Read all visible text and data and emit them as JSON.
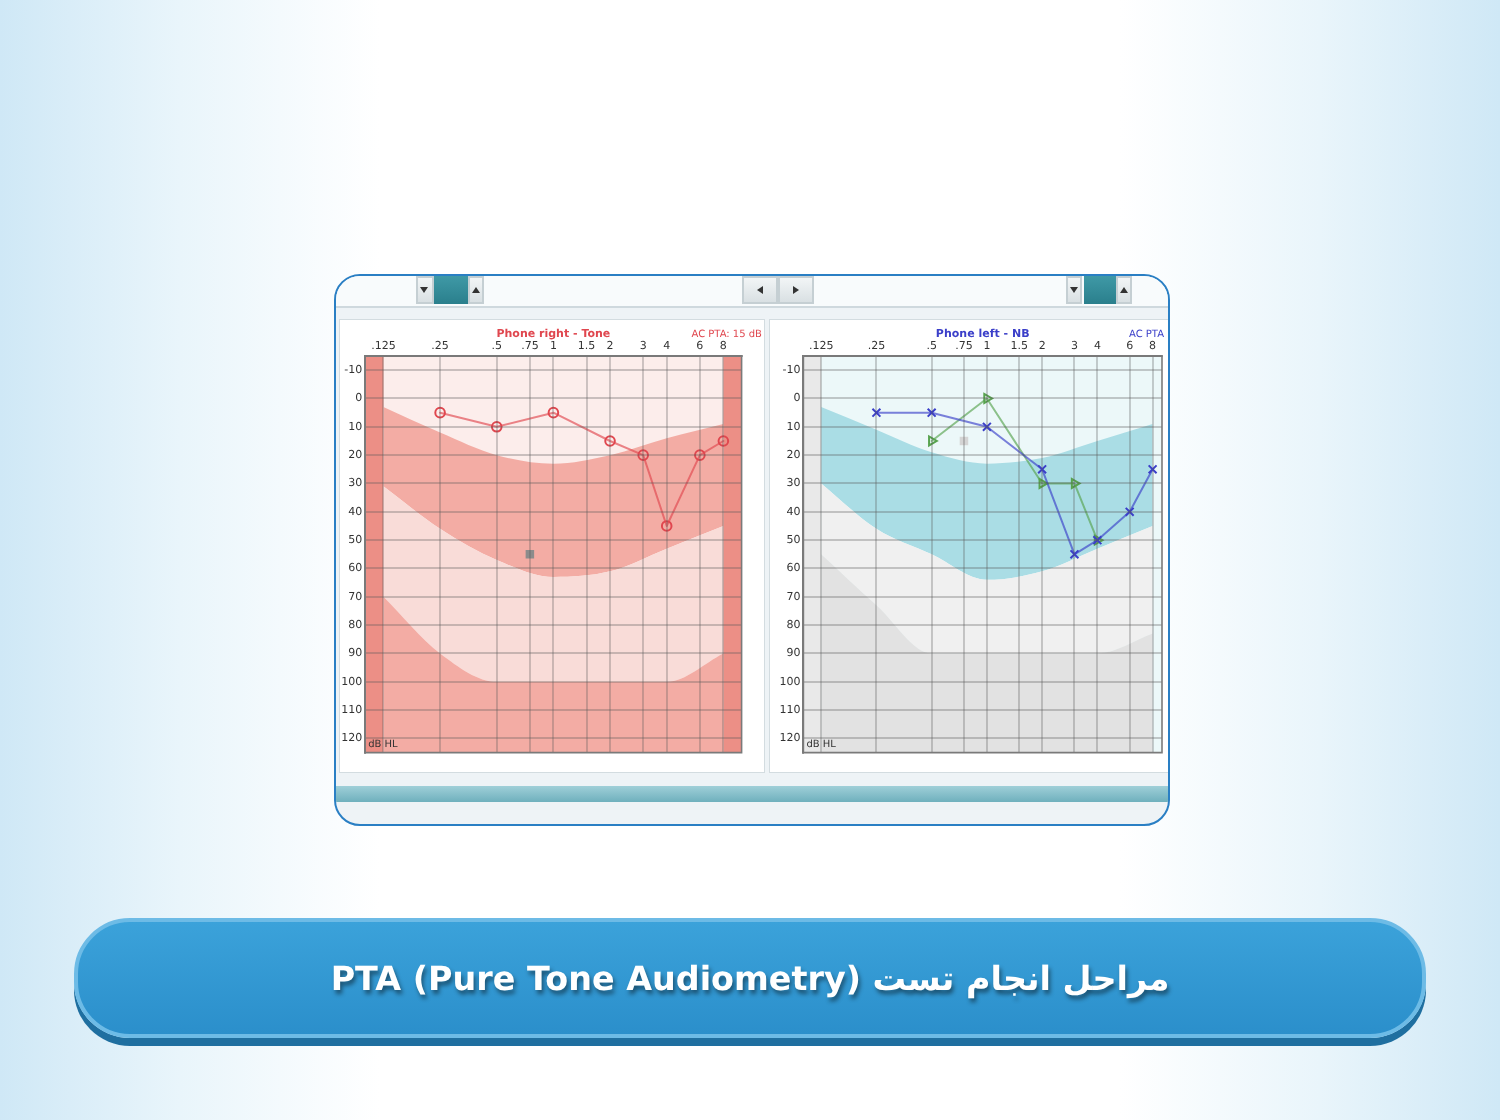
{
  "chart_data": [
    {
      "type": "line",
      "title": "مراحل انجام تست PTA (Pure Tone Audiometry)",
      "subtitle": "Phone right - Tone",
      "ylabel": "dB HL",
      "annotations": [
        "AC PTA: 15 dB"
      ],
      "x": [
        0.25,
        0.5,
        1,
        2,
        3,
        4,
        6,
        8
      ],
      "log": "x",
      "xlim": [
        0.1,
        10
      ],
      "xticks": [
        {
          "value": 0.125,
          "label": ".125"
        },
        {
          "value": 0.25,
          "label": ".25"
        },
        {
          "value": 0.5,
          "label": ".5"
        },
        {
          "value": 0.75,
          "label": ".75"
        },
        1,
        1.5,
        2,
        3,
        4,
        6,
        8
      ],
      "ylim": [
        125,
        -15
      ],
      "yticks": [
        -10,
        0,
        10,
        20,
        30,
        40,
        50,
        60,
        70,
        80,
        90,
        100,
        110,
        120
      ],
      "grid": true,
      "bands": [
        {
          "axis": "x",
          "from": 0.1,
          "to": 0.125,
          "color": "#ec8f86"
        },
        {
          "axis": "x",
          "from": 8,
          "to": 10,
          "color": "#ec8f86"
        }
      ],
      "series": [
        {
          "type": "line",
          "color": "#f3aca4",
          "x": [
            0.125,
            0.25,
            0.5,
            1,
            2,
            4,
            8
          ],
          "values": [
            null,
            null,
            null,
            null,
            null,
            null,
            null
          ],
          "lower": [
            3,
            12,
            20,
            23,
            20,
            14,
            9
          ],
          "upper": [
            31,
            46,
            57,
            63,
            61,
            53,
            45
          ]
        },
        {
          "type": "line",
          "color": "#f9dcd8",
          "x": [
            0.125,
            0.25,
            0.5,
            1,
            2,
            4,
            8
          ],
          "values": [
            null,
            null,
            null,
            null,
            null,
            null,
            null
          ],
          "lower": [
            31,
            46,
            57,
            63,
            61,
            53,
            45
          ],
          "upper": [
            70,
            90,
            100,
            100,
            100,
            100,
            90
          ]
        },
        {
          "type": "line",
          "color": "#f3aca4",
          "x": [
            0.125,
            0.25,
            0.5,
            1,
            2,
            4,
            8
          ],
          "values": [
            null,
            null,
            null,
            null,
            null,
            null,
            null
          ],
          "lower": [
            70,
            90,
            100,
            100,
            100,
            100,
            90
          ],
          "upper": [
            125,
            125,
            125,
            125,
            125,
            125,
            125
          ]
        },
        {
          "type": "line",
          "color": "#e0474f",
          "marker": "circle",
          "values": [
            5,
            10,
            5,
            15,
            20,
            45,
            20,
            15
          ]
        },
        {
          "type": "scatter",
          "color": "#8c8c8c",
          "marker": "square",
          "x": [
            0.75
          ],
          "values": [
            55
          ]
        }
      ]
    },
    {
      "type": "line",
      "subtitle": "Phone left - NB",
      "ylabel": "dB HL",
      "annotations": [
        "AC PTA"
      ],
      "x": [
        0.25,
        0.5,
        1,
        2,
        3,
        4,
        6,
        8
      ],
      "log": "x",
      "xlim": [
        0.1,
        9
      ],
      "xticks": [
        {
          "value": 0.125,
          "label": ".125"
        },
        {
          "value": 0.25,
          "label": ".25"
        },
        {
          "value": 0.5,
          "label": ".5"
        },
        {
          "value": 0.75,
          "label": ".75"
        },
        1,
        1.5,
        2,
        3,
        4,
        6,
        8
      ],
      "ylim": [
        125,
        -15
      ],
      "yticks": [
        -10,
        0,
        10,
        20,
        30,
        40,
        50,
        60,
        70,
        80,
        90,
        100,
        110,
        120
      ],
      "grid": true,
      "bands": [
        {
          "axis": "x",
          "from": 0.1,
          "to": 0.125,
          "color": "#e9e9e9"
        }
      ],
      "series": [
        {
          "type": "line",
          "color": "#aadde5",
          "x": [
            0.125,
            0.25,
            0.5,
            1,
            2,
            4,
            8
          ],
          "values": [
            null,
            null,
            null,
            null,
            null,
            null,
            null
          ],
          "lower": [
            3,
            11,
            19,
            23,
            21,
            15,
            9
          ],
          "upper": [
            30,
            46,
            55,
            64,
            61,
            53,
            45
          ]
        },
        {
          "type": "line",
          "color": "#f0f0f0",
          "x": [
            0.125,
            0.25,
            0.5,
            1,
            2,
            4,
            8
          ],
          "values": [
            null,
            null,
            null,
            null,
            null,
            null,
            null
          ],
          "lower": [
            30,
            46,
            55,
            64,
            61,
            53,
            45
          ],
          "upper": [
            55,
            73,
            90,
            90,
            90,
            90,
            83
          ]
        },
        {
          "type": "line",
          "color": "#e2e2e2",
          "x": [
            0.125,
            0.25,
            0.5,
            1,
            2,
            4,
            8
          ],
          "values": [
            null,
            null,
            null,
            null,
            null,
            null,
            null
          ],
          "lower": [
            55,
            73,
            90,
            90,
            90,
            90,
            83
          ],
          "upper": [
            125,
            125,
            125,
            125,
            125,
            125,
            125
          ]
        },
        {
          "type": "line",
          "color": "#3b3fc9",
          "marker": "cross",
          "values": [
            5,
            5,
            10,
            25,
            55,
            50,
            40,
            25
          ]
        },
        {
          "type": "line",
          "color": "#58a34f",
          "marker": "triangle",
          "x": [
            0.5,
            1,
            2,
            3,
            4
          ],
          "values": [
            15,
            0,
            30,
            30,
            50
          ]
        },
        {
          "type": "scatter",
          "color": "#d5d5d5",
          "marker": "square",
          "x": [
            0.75
          ],
          "values": [
            15
          ]
        }
      ]
    }
  ]
}
